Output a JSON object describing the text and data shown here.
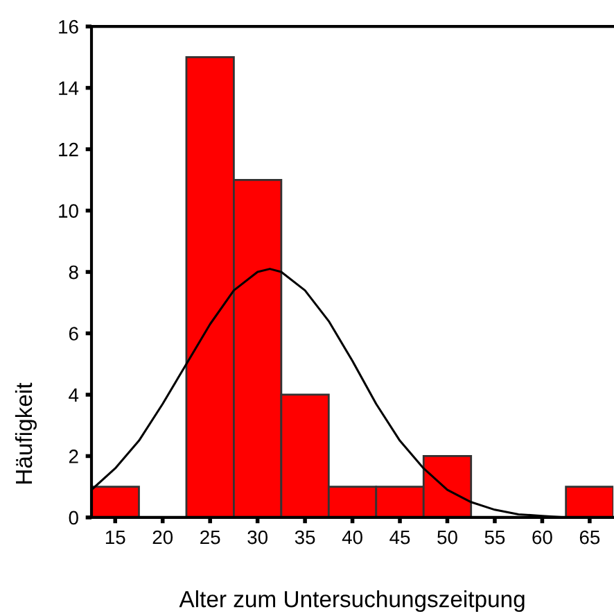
{
  "chart_data": {
    "type": "histogram",
    "xlabel": "Alter zum Untersuchungszeitpung",
    "ylabel": "Häufigkeit",
    "bins": [
      12.5,
      17.5,
      22.5,
      27.5,
      32.5,
      37.5,
      42.5,
      47.5,
      52.5,
      57.5,
      62.5,
      67.5
    ],
    "values": [
      1,
      0,
      15,
      11,
      4,
      1,
      1,
      2,
      0,
      0,
      1
    ],
    "color": "#ff0000",
    "series": [
      {
        "type": "line",
        "color": "#000000",
        "x": [
          12.5,
          15,
          17.5,
          20,
          22.5,
          25,
          27.5,
          30,
          31.3,
          32.5,
          35,
          37.5,
          40,
          42.5,
          45,
          47.5,
          50,
          52.5,
          55,
          57.5,
          60,
          62.5
        ],
        "values": [
          0.9,
          1.6,
          2.5,
          3.7,
          5.0,
          6.3,
          7.4,
          8.0,
          8.1,
          8.0,
          7.4,
          6.4,
          5.1,
          3.7,
          2.5,
          1.6,
          0.9,
          0.5,
          0.25,
          0.1,
          0.05,
          0.0
        ]
      }
    ],
    "xlim": [
      12.5,
      67.5
    ],
    "ylim": [
      0,
      16
    ],
    "xticks": [
      15,
      20,
      25,
      30,
      35,
      40,
      45,
      50,
      55,
      60,
      65
    ],
    "yticks": [
      0,
      2,
      4,
      6,
      8,
      10,
      12,
      14,
      16
    ],
    "grid": false,
    "legend": false
  }
}
